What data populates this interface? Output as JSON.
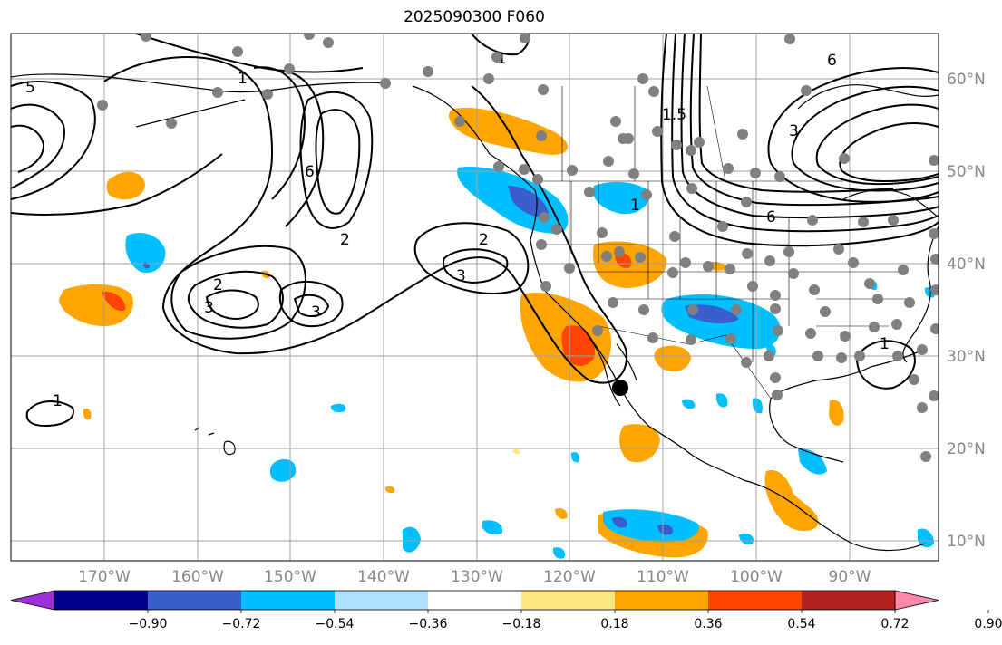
{
  "title": "2025090300 F060",
  "map": {
    "lat_labels": [
      "60°N",
      "50°N",
      "40°N",
      "30°N",
      "20°N",
      "10°N"
    ],
    "lon_labels": [
      "170°W",
      "160°W",
      "150°W",
      "140°W",
      "130°W",
      "120°W",
      "110°W",
      "100°W",
      "90°W"
    ],
    "gridline_color": "#a0a0a0",
    "label_color": "#888888",
    "contour_labels": [
      "1",
      "2",
      "3",
      "5",
      "6",
      "1",
      "2",
      "3",
      "3",
      "2",
      "1",
      "6",
      "1.5",
      "3",
      "6",
      "1",
      "1"
    ]
  },
  "colorbar": {
    "colors": [
      "#9b30d8",
      "#00008b",
      "#3a5fcd",
      "#00bfff",
      "#b0e0ff",
      "#ffffff",
      "#ffe680",
      "#ffa500",
      "#ff4500",
      "#b22222",
      "#ff88aa"
    ],
    "tick_labels": [
      "−0.90",
      "−0.72",
      "−0.54",
      "−0.36",
      "−0.18",
      "0.18",
      "0.36",
      "0.54",
      "0.72",
      "0.90"
    ]
  },
  "legend_colors": {
    "land_outline": "#000000",
    "station_dot": "#808080",
    "contour": "#000000"
  }
}
